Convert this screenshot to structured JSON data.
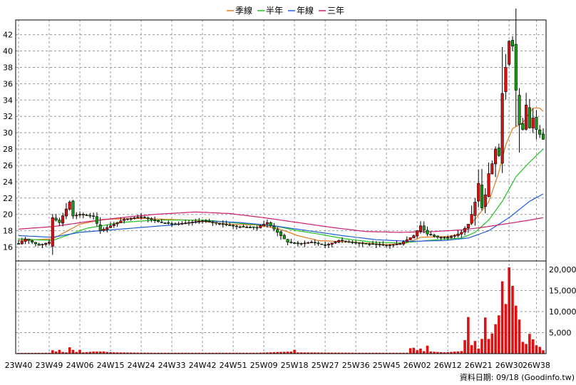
{
  "chart_data": {
    "type": "candlestick",
    "legend": [
      {
        "name": "季線",
        "color": "#e07a1f"
      },
      {
        "name": "半年",
        "color": "#22c322"
      },
      {
        "name": "年線",
        "color": "#1f5fd6"
      },
      {
        "name": "三年",
        "color": "#cc1f6e"
      }
    ],
    "x_ticks": [
      {
        "label": "23W40",
        "i": 0
      },
      {
        "label": "23W49",
        "i": 9
      },
      {
        "label": "24W06",
        "i": 18
      },
      {
        "label": "24W15",
        "i": 27
      },
      {
        "label": "24W24",
        "i": 36
      },
      {
        "label": "24W33",
        "i": 45
      },
      {
        "label": "24W42",
        "i": 54
      },
      {
        "label": "24W51",
        "i": 63
      },
      {
        "label": "25W09",
        "i": 72
      },
      {
        "label": "25W18",
        "i": 81
      },
      {
        "label": "25W27",
        "i": 90
      },
      {
        "label": "25W36",
        "i": 99
      },
      {
        "label": "25W45",
        "i": 108
      },
      {
        "label": "26W02",
        "i": 117
      },
      {
        "label": "26W12",
        "i": 126
      },
      {
        "label": "26W21",
        "i": 135
      },
      {
        "label": "26W30",
        "i": 144
      },
      {
        "label": "26W38",
        "i": 152
      }
    ],
    "price_axis": {
      "min": 14.3,
      "max": 43.8,
      "ticks": [
        16,
        18,
        20,
        22,
        24,
        26,
        28,
        30,
        32,
        34,
        36,
        38,
        40,
        42
      ]
    },
    "volume_axis": {
      "min": 0,
      "max": 20000,
      "ticks": [
        5000,
        10000,
        15000,
        20000
      ],
      "tick_labels": [
        "5,000",
        "10,000",
        "15,000",
        "20,000"
      ]
    },
    "price_keypoints": [
      [
        0,
        16.4
      ],
      [
        2,
        17.0
      ],
      [
        6,
        16.2
      ],
      [
        9,
        16.6
      ],
      [
        10,
        19.6
      ],
      [
        12,
        19.0
      ],
      [
        15,
        21.5
      ],
      [
        16,
        19.8
      ],
      [
        18,
        20.0
      ],
      [
        22,
        19.8
      ],
      [
        24,
        18.0
      ],
      [
        27,
        18.6
      ],
      [
        31,
        19.4
      ],
      [
        36,
        19.7
      ],
      [
        42,
        19.0
      ],
      [
        46,
        18.8
      ],
      [
        54,
        19.2
      ],
      [
        60,
        18.8
      ],
      [
        64,
        18.5
      ],
      [
        70,
        18.4
      ],
      [
        73,
        19.0
      ],
      [
        76,
        17.8
      ],
      [
        79,
        16.6
      ],
      [
        82,
        16.4
      ],
      [
        86,
        16.6
      ],
      [
        90,
        16.2
      ],
      [
        94,
        16.8
      ],
      [
        98,
        16.6
      ],
      [
        102,
        16.4
      ],
      [
        108,
        16.2
      ],
      [
        112,
        16.4
      ],
      [
        116,
        17.4
      ],
      [
        118,
        18.6
      ],
      [
        120,
        17.6
      ],
      [
        123,
        17.2
      ],
      [
        126,
        17.2
      ],
      [
        128,
        17.4
      ],
      [
        130,
        17.8
      ],
      [
        132,
        18.8
      ],
      [
        133,
        20.0
      ],
      [
        134,
        21.5
      ],
      [
        135,
        23.8
      ],
      [
        136,
        20.8
      ],
      [
        137,
        22.4
      ],
      [
        138,
        25.0
      ],
      [
        139,
        26.2
      ],
      [
        140,
        28.0
      ],
      [
        141,
        27.2
      ],
      [
        142,
        34.8
      ],
      [
        143,
        38.0
      ],
      [
        144,
        41.2
      ],
      [
        145,
        40.6
      ],
      [
        146,
        35.2
      ],
      [
        147,
        31.0
      ],
      [
        148,
        30.4
      ],
      [
        149,
        33.4
      ],
      [
        150,
        30.6
      ],
      [
        151,
        31.8
      ],
      [
        152,
        30.4
      ],
      [
        153,
        29.8
      ],
      [
        154,
        29.2
      ]
    ],
    "ma_lines": [
      {
        "name": "季線",
        "points": [
          [
            0,
            16.8
          ],
          [
            10,
            17.0
          ],
          [
            18,
            18.8
          ],
          [
            25,
            19.4
          ],
          [
            36,
            19.5
          ],
          [
            50,
            19.3
          ],
          [
            62,
            18.8
          ],
          [
            70,
            18.7
          ],
          [
            76,
            18.3
          ],
          [
            82,
            17.4
          ],
          [
            88,
            16.8
          ],
          [
            98,
            16.6
          ],
          [
            108,
            16.3
          ],
          [
            114,
            16.5
          ],
          [
            118,
            17.2
          ],
          [
            126,
            17.3
          ],
          [
            130,
            17.6
          ],
          [
            134,
            19.4
          ],
          [
            138,
            21.5
          ],
          [
            141,
            25.2
          ],
          [
            143,
            28.5
          ],
          [
            145,
            30.5
          ],
          [
            148,
            31.2
          ],
          [
            151,
            33.0
          ],
          [
            153,
            33.0
          ],
          [
            154,
            32.6
          ]
        ]
      },
      {
        "name": "半年",
        "points": [
          [
            0,
            17.0
          ],
          [
            10,
            16.8
          ],
          [
            20,
            18.3
          ],
          [
            30,
            19.0
          ],
          [
            40,
            19.3
          ],
          [
            55,
            19.3
          ],
          [
            65,
            18.9
          ],
          [
            75,
            18.6
          ],
          [
            82,
            18.0
          ],
          [
            88,
            17.6
          ],
          [
            96,
            17.0
          ],
          [
            104,
            16.6
          ],
          [
            112,
            16.5
          ],
          [
            120,
            16.8
          ],
          [
            126,
            17.0
          ],
          [
            130,
            17.1
          ],
          [
            134,
            17.8
          ],
          [
            138,
            19.3
          ],
          [
            142,
            21.6
          ],
          [
            146,
            24.6
          ],
          [
            150,
            26.4
          ],
          [
            154,
            28.0
          ]
        ]
      },
      {
        "name": "年線",
        "points": [
          [
            0,
            17.4
          ],
          [
            10,
            17.2
          ],
          [
            18,
            17.8
          ],
          [
            30,
            18.2
          ],
          [
            45,
            18.7
          ],
          [
            55,
            19.2
          ],
          [
            65,
            19.0
          ],
          [
            75,
            18.6
          ],
          [
            85,
            18.0
          ],
          [
            95,
            17.4
          ],
          [
            105,
            16.9
          ],
          [
            115,
            16.7
          ],
          [
            125,
            16.8
          ],
          [
            132,
            17.1
          ],
          [
            138,
            18.0
          ],
          [
            144,
            19.6
          ],
          [
            150,
            21.6
          ],
          [
            154,
            22.5
          ]
        ]
      },
      {
        "name": "三年",
        "points": [
          [
            0,
            18.2
          ],
          [
            10,
            18.5
          ],
          [
            20,
            19.1
          ],
          [
            30,
            19.6
          ],
          [
            40,
            20.0
          ],
          [
            52,
            20.3
          ],
          [
            62,
            20.1
          ],
          [
            72,
            19.6
          ],
          [
            82,
            19.0
          ],
          [
            92,
            18.4
          ],
          [
            102,
            17.9
          ],
          [
            112,
            17.8
          ],
          [
            122,
            17.9
          ],
          [
            130,
            18.1
          ],
          [
            136,
            18.4
          ],
          [
            144,
            18.9
          ],
          [
            150,
            19.3
          ],
          [
            154,
            19.6
          ]
        ]
      }
    ],
    "volume_keypoints": [
      [
        0,
        150
      ],
      [
        9,
        200
      ],
      [
        10,
        800
      ],
      [
        11,
        500
      ],
      [
        12,
        900
      ],
      [
        13,
        400
      ],
      [
        14,
        300
      ],
      [
        15,
        1500
      ],
      [
        16,
        900
      ],
      [
        17,
        400
      ],
      [
        18,
        900
      ],
      [
        19,
        300
      ],
      [
        22,
        500
      ],
      [
        25,
        500
      ],
      [
        26,
        400
      ],
      [
        28,
        300
      ],
      [
        40,
        200
      ],
      [
        55,
        200
      ],
      [
        70,
        200
      ],
      [
        80,
        500
      ],
      [
        81,
        900
      ],
      [
        82,
        300
      ],
      [
        100,
        200
      ],
      [
        114,
        200
      ],
      [
        115,
        1300
      ],
      [
        116,
        1400
      ],
      [
        117,
        800
      ],
      [
        118,
        1200
      ],
      [
        119,
        600
      ],
      [
        120,
        1900
      ],
      [
        121,
        500
      ],
      [
        125,
        300
      ],
      [
        130,
        600
      ],
      [
        131,
        3200
      ],
      [
        132,
        8700
      ],
      [
        133,
        2000
      ],
      [
        134,
        3000
      ],
      [
        135,
        1200
      ],
      [
        136,
        3500
      ],
      [
        137,
        8600
      ],
      [
        138,
        3500
      ],
      [
        139,
        4800
      ],
      [
        140,
        7000
      ],
      [
        141,
        9100
      ],
      [
        142,
        17200
      ],
      [
        143,
        11800
      ],
      [
        144,
        20500
      ],
      [
        145,
        16100
      ],
      [
        146,
        11400
      ],
      [
        147,
        8100
      ],
      [
        148,
        2800
      ],
      [
        149,
        2300
      ],
      [
        150,
        4700
      ],
      [
        151,
        3400
      ],
      [
        152,
        2000
      ],
      [
        153,
        1600
      ],
      [
        154,
        800
      ]
    ],
    "x_count": 155,
    "ylabel": "",
    "xlabel": ""
  },
  "credit": "資料日期: 09/18  (Goodinfo.tw)"
}
